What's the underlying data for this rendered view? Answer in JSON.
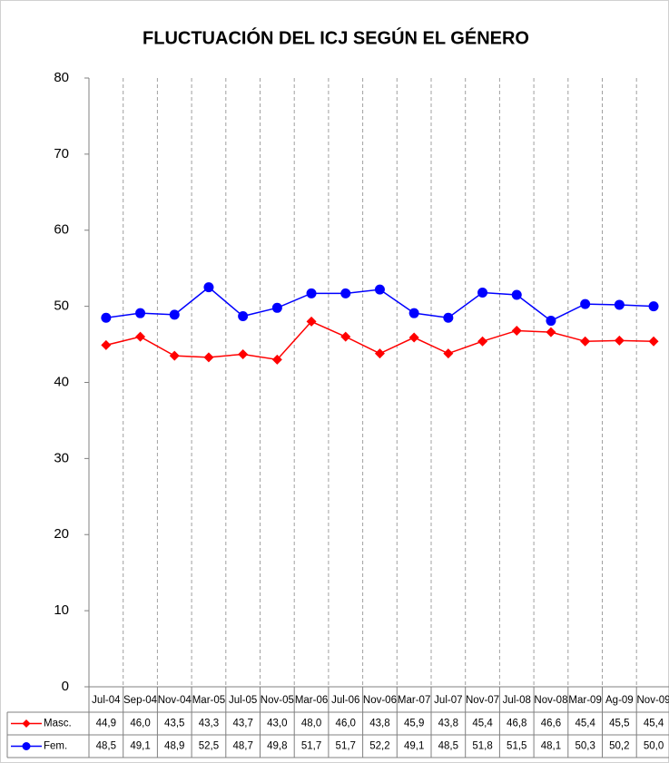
{
  "chart_data": {
    "type": "line",
    "title": "FLUCTUACIÓN DEL ICJ SEGÚN EL GÉNERO",
    "categories": [
      "Jul-04",
      "Sep-04",
      "Nov-04",
      "Mar-05",
      "Jul-05",
      "Nov-05",
      "Mar-06",
      "Jul-06",
      "Nov-06",
      "Mar-07",
      "Jul-07",
      "Nov-07",
      "Jul-08",
      "Nov-08",
      "Mar-09",
      "Ag-09",
      "Nov-09"
    ],
    "series": [
      {
        "name": "Masc.",
        "color": "#ff0000",
        "marker": "diamond",
        "values": [
          44.9,
          46.0,
          43.5,
          43.3,
          43.7,
          43.0,
          48.0,
          46.0,
          43.8,
          45.9,
          43.8,
          45.4,
          46.8,
          46.6,
          45.4,
          45.5,
          45.4
        ],
        "value_labels": [
          "44,9",
          "46,0",
          "43,5",
          "43,3",
          "43,7",
          "43,0",
          "48,0",
          "46,0",
          "43,8",
          "45,9",
          "43,8",
          "45,4",
          "46,8",
          "46,6",
          "45,4",
          "45,5",
          "45,4"
        ]
      },
      {
        "name": "Fem.",
        "color": "#0000ff",
        "marker": "circle",
        "values": [
          48.5,
          49.1,
          48.9,
          52.5,
          48.7,
          49.8,
          51.7,
          51.7,
          52.2,
          49.1,
          48.5,
          51.8,
          51.5,
          48.1,
          50.3,
          50.2,
          50.0
        ],
        "value_labels": [
          "48,5",
          "49,1",
          "48,9",
          "52,5",
          "48,7",
          "49,8",
          "51,7",
          "51,7",
          "52,2",
          "49,1",
          "48,5",
          "51,8",
          "51,5",
          "48,1",
          "50,3",
          "50,2",
          "50,0"
        ]
      }
    ],
    "ylim": [
      0,
      80
    ],
    "yticks": [
      0,
      10,
      20,
      30,
      40,
      50,
      60,
      70,
      80
    ],
    "grid": "x"
  }
}
